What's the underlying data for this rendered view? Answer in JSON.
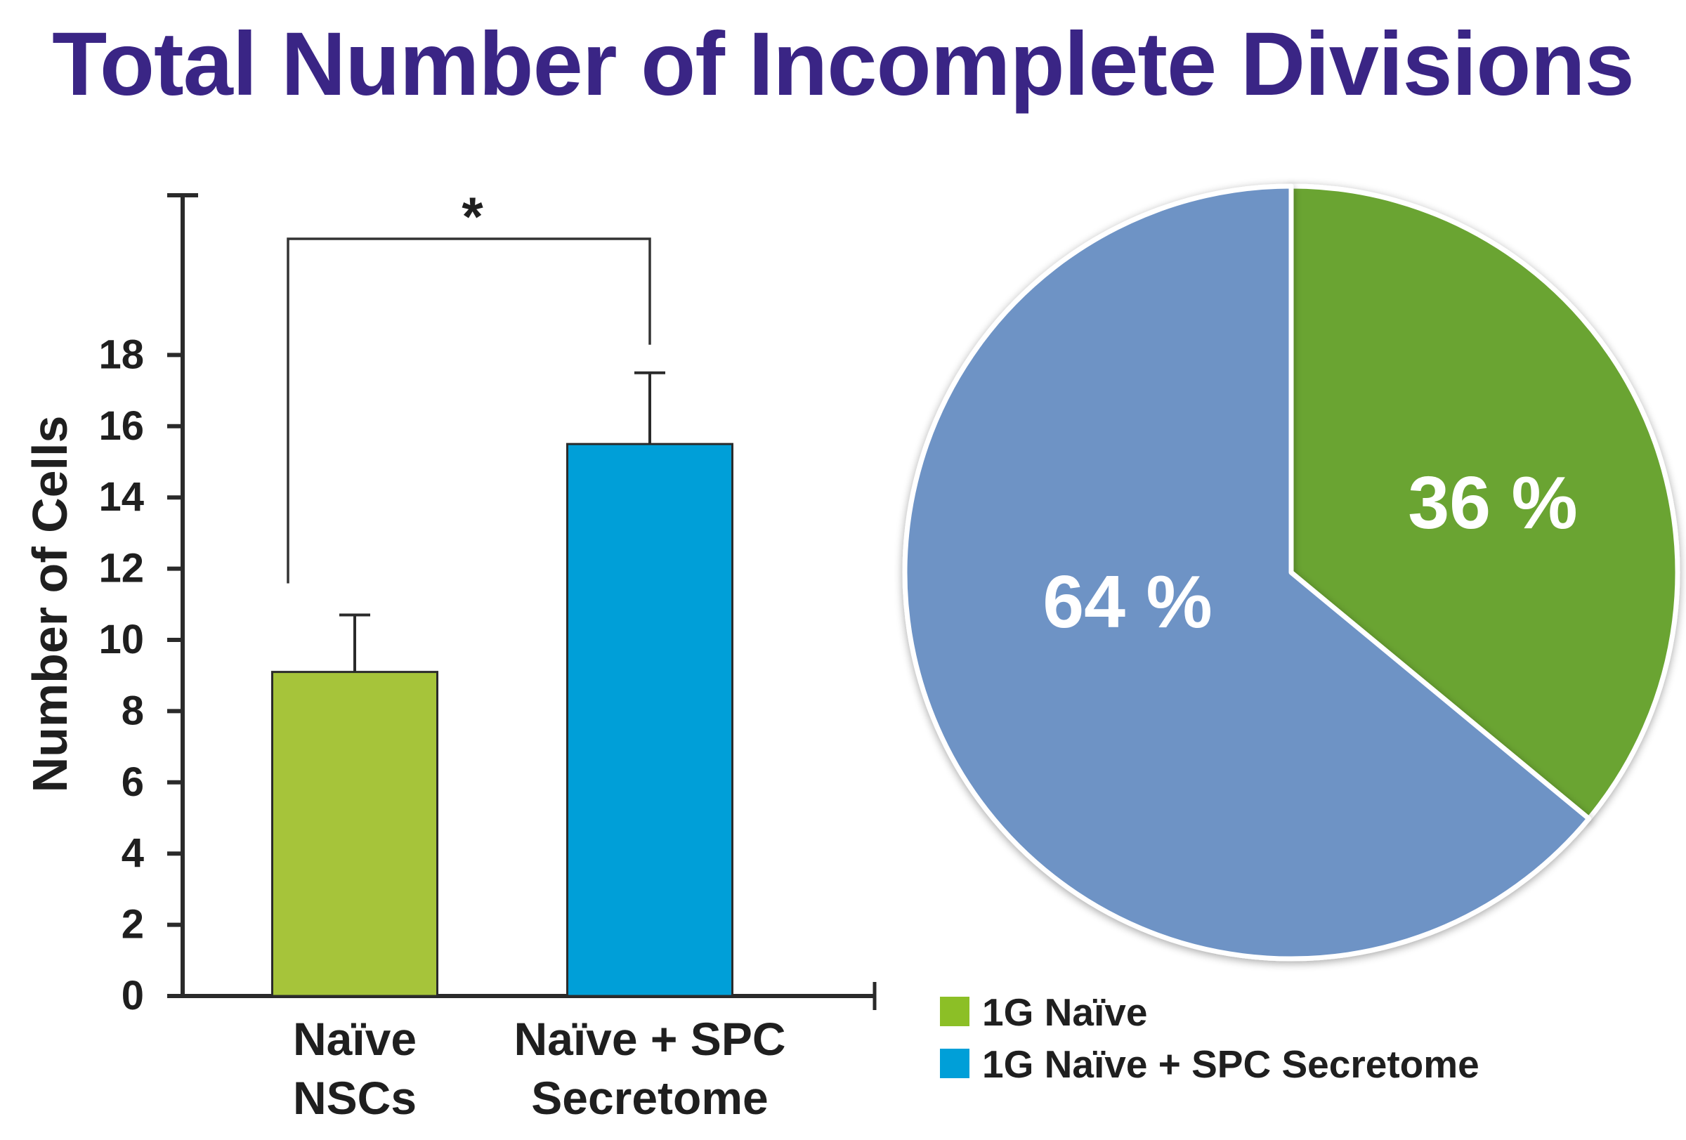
{
  "title": "Total Number of Incomplete Divisions",
  "chart_data": [
    {
      "type": "bar",
      "ylabel": "Number of Cells",
      "ylim": [
        0,
        22
      ],
      "yticks": [
        0,
        2,
        4,
        6,
        8,
        10,
        12,
        14,
        16,
        18
      ],
      "categories": [
        [
          "Naïve",
          "NSCs"
        ],
        [
          "Naïve + SPC",
          "Secretome"
        ]
      ],
      "values": [
        9.1,
        15.5
      ],
      "errors": [
        1.6,
        2.0
      ],
      "colors": [
        "#a6c43a",
        "#009fd8"
      ],
      "significance": {
        "marker": "*",
        "between": [
          0,
          1
        ]
      },
      "grid": false
    },
    {
      "type": "pie",
      "slices": [
        {
          "label": "36 %",
          "value": 36,
          "legend": "1G Naïve",
          "color": "#6aa433",
          "legend_color": "#8cbf26"
        },
        {
          "label": "64 %",
          "value": 64,
          "legend": "1G Naïve + SPC Secretome",
          "color": "#6e93c5",
          "legend_color": "#009fd8"
        }
      ],
      "legend_position": "bottom-left of pie"
    }
  ]
}
